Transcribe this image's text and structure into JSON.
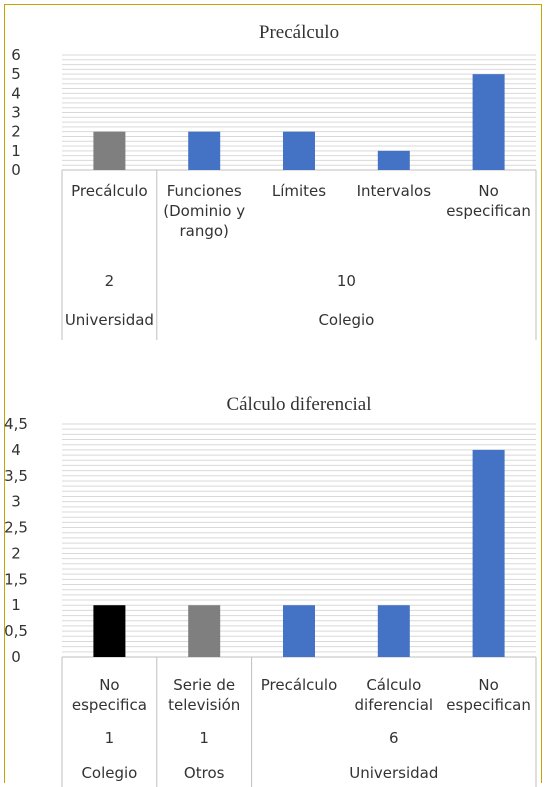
{
  "chart_data": [
    {
      "type": "bar",
      "title": "Precálculo",
      "ylim": [
        0,
        6
      ],
      "ytick_labels": [
        "0",
        "1",
        "2",
        "3",
        "4",
        "5",
        "6"
      ],
      "grid": true,
      "legend": "none",
      "categories": [
        {
          "label": [
            "Precálculo"
          ],
          "value": 2,
          "color": "#7f7f7f"
        },
        {
          "label": [
            "Funciones",
            "(Dominio y",
            "rango)"
          ],
          "value": 2,
          "color": "#4472c4"
        },
        {
          "label": [
            "Límites"
          ],
          "value": 2,
          "color": "#4472c4"
        },
        {
          "label": [
            "Intervalos"
          ],
          "value": 1,
          "color": "#4472c4"
        },
        {
          "label": [
            "No",
            "especifican"
          ],
          "value": 5,
          "color": "#4472c4"
        }
      ],
      "groups": [
        {
          "count": "2",
          "name": "Universidad",
          "members": 1
        },
        {
          "count": "10",
          "name": "Colegio",
          "members": 4
        }
      ]
    },
    {
      "type": "bar",
      "title": "Cálculo diferencial",
      "ylim": [
        0,
        4.5
      ],
      "ytick_labels": [
        "0",
        "0,5",
        "1",
        "1,5",
        "2",
        "2,5",
        "3",
        "3,5",
        "4",
        "4,5"
      ],
      "grid": true,
      "legend": "none",
      "categories": [
        {
          "label": [
            "No",
            "especifica"
          ],
          "value": 1,
          "color": "#000000"
        },
        {
          "label": [
            "Serie de",
            "televisión"
          ],
          "value": 1,
          "color": "#7f7f7f"
        },
        {
          "label": [
            "Precálculo"
          ],
          "value": 1,
          "color": "#4472c4"
        },
        {
          "label": [
            "Cálculo",
            "diferencial"
          ],
          "value": 1,
          "color": "#4472c4"
        },
        {
          "label": [
            "No",
            "especifican"
          ],
          "value": 4,
          "color": "#4472c4"
        }
      ],
      "groups": [
        {
          "count": "1",
          "name": "Colegio",
          "members": 1
        },
        {
          "count": "1",
          "name": "Otros",
          "members": 1
        },
        {
          "count": "6",
          "name": "Universidad",
          "members": 3
        }
      ]
    }
  ]
}
